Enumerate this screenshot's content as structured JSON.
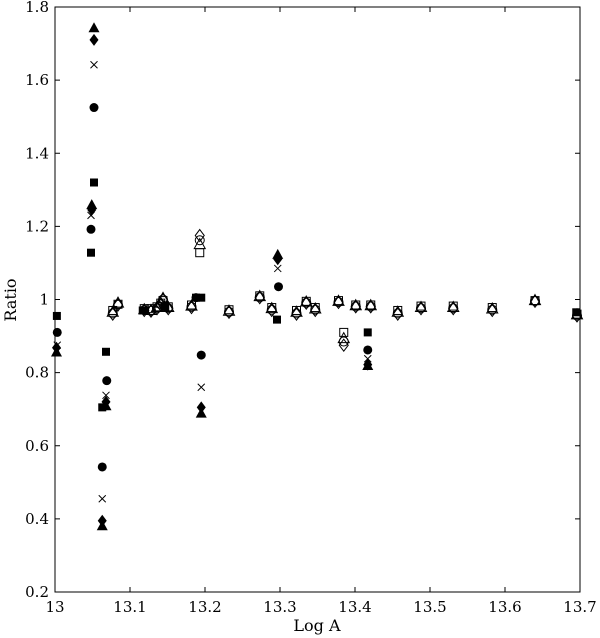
{
  "chart_data": {
    "type": "scatter",
    "title": "",
    "xlabel": "Log A",
    "ylabel": "Ratio",
    "xlim": [
      13,
      13.7
    ],
    "ylim": [
      0.2,
      1.8
    ],
    "x_ticks": [
      "13",
      "13.1",
      "13.2",
      "13.3",
      "13.4",
      "13.5",
      "13.6",
      "13.7"
    ],
    "y_ticks": [
      "0.2",
      "0.4",
      "0.6",
      "0.8",
      "1",
      "1.2",
      "1.4",
      "1.6",
      "1.8"
    ],
    "grid": false,
    "legend": "none",
    "series": [
      {
        "marker": "filled-square",
        "points": [
          [
            13.0025,
            0.955
          ],
          [
            13.048,
            1.128
          ],
          [
            13.052,
            1.32
          ],
          [
            13.063,
            0.705
          ],
          [
            13.068,
            0.857
          ],
          [
            13.117,
            0.97
          ],
          [
            13.147,
            0.98
          ],
          [
            13.188,
            1.005
          ],
          [
            13.195,
            1.005
          ],
          [
            13.296,
            0.945
          ],
          [
            13.417,
            0.91
          ],
          [
            13.695,
            0.965
          ]
        ]
      },
      {
        "marker": "filled-circle",
        "points": [
          [
            13.003,
            0.91
          ],
          [
            13.048,
            1.192
          ],
          [
            13.052,
            1.525
          ],
          [
            13.063,
            0.542
          ],
          [
            13.069,
            0.778
          ],
          [
            13.188,
            1.005
          ],
          [
            13.195,
            0.848
          ],
          [
            13.298,
            1.035
          ],
          [
            13.417,
            0.862
          ]
        ]
      },
      {
        "marker": "filled-diamond",
        "points": [
          [
            13.002,
            0.868
          ],
          [
            13.049,
            1.245
          ],
          [
            13.052,
            1.71
          ],
          [
            13.063,
            0.395
          ],
          [
            13.068,
            0.72
          ],
          [
            13.195,
            0.705
          ],
          [
            13.297,
            1.11
          ],
          [
            13.417,
            0.822
          ]
        ]
      },
      {
        "marker": "filled-triangle",
        "points": [
          [
            13.002,
            0.855
          ],
          [
            13.049,
            1.258
          ],
          [
            13.052,
            1.742
          ],
          [
            13.063,
            0.38
          ],
          [
            13.068,
            0.708
          ],
          [
            13.195,
            0.688
          ],
          [
            13.297,
            1.122
          ],
          [
            13.417,
            0.818
          ]
        ]
      },
      {
        "marker": "cross",
        "points": [
          [
            13.003,
            0.875
          ],
          [
            13.048,
            1.23
          ],
          [
            13.052,
            1.642
          ],
          [
            13.063,
            0.455
          ],
          [
            13.068,
            0.738
          ],
          [
            13.195,
            0.76
          ],
          [
            13.297,
            1.085
          ],
          [
            13.417,
            0.838
          ]
        ]
      },
      {
        "marker": "open-square",
        "points": [
          [
            13.077,
            0.97
          ],
          [
            13.084,
            0.987
          ],
          [
            13.119,
            0.975
          ],
          [
            13.128,
            0.975
          ],
          [
            13.136,
            0.98
          ],
          [
            13.141,
            0.99
          ],
          [
            13.144,
            0.997
          ],
          [
            13.151,
            0.98
          ],
          [
            13.182,
            0.985
          ],
          [
            13.193,
            1.128
          ],
          [
            13.232,
            0.972
          ],
          [
            13.273,
            1.01
          ],
          [
            13.289,
            0.978
          ],
          [
            13.322,
            0.97
          ],
          [
            13.335,
            0.995
          ],
          [
            13.347,
            0.978
          ],
          [
            13.378,
            0.997
          ],
          [
            13.385,
            0.91
          ],
          [
            13.401,
            0.985
          ],
          [
            13.421,
            0.985
          ],
          [
            13.457,
            0.97
          ],
          [
            13.488,
            0.982
          ],
          [
            13.531,
            0.982
          ],
          [
            13.583,
            0.978
          ],
          [
            13.64,
            0.997
          ],
          [
            13.696,
            0.96
          ]
        ]
      },
      {
        "marker": "open-diamond",
        "points": [
          [
            13.077,
            0.96
          ],
          [
            13.084,
            0.985
          ],
          [
            13.119,
            0.97
          ],
          [
            13.128,
            0.968
          ],
          [
            13.136,
            0.975
          ],
          [
            13.141,
            0.985
          ],
          [
            13.144,
            1.0
          ],
          [
            13.151,
            0.975
          ],
          [
            13.182,
            0.978
          ],
          [
            13.193,
            1.175
          ],
          [
            13.232,
            0.965
          ],
          [
            13.273,
            1.005
          ],
          [
            13.289,
            0.97
          ],
          [
            13.322,
            0.96
          ],
          [
            13.335,
            0.99
          ],
          [
            13.347,
            0.97
          ],
          [
            13.378,
            0.992
          ],
          [
            13.385,
            0.875
          ],
          [
            13.401,
            0.98
          ],
          [
            13.421,
            0.98
          ],
          [
            13.457,
            0.96
          ],
          [
            13.488,
            0.975
          ],
          [
            13.531,
            0.975
          ],
          [
            13.583,
            0.97
          ],
          [
            13.64,
            0.995
          ],
          [
            13.696,
            0.955
          ]
        ]
      },
      {
        "marker": "open-triangle",
        "points": [
          [
            13.077,
            0.965
          ],
          [
            13.084,
            0.99
          ],
          [
            13.119,
            0.972
          ],
          [
            13.128,
            0.97
          ],
          [
            13.136,
            0.978
          ],
          [
            13.141,
            0.99
          ],
          [
            13.144,
            1.003
          ],
          [
            13.151,
            0.978
          ],
          [
            13.182,
            0.982
          ],
          [
            13.193,
            1.15
          ],
          [
            13.232,
            0.968
          ],
          [
            13.273,
            1.008
          ],
          [
            13.289,
            0.975
          ],
          [
            13.322,
            0.965
          ],
          [
            13.335,
            0.993
          ],
          [
            13.347,
            0.974
          ],
          [
            13.378,
            0.995
          ],
          [
            13.385,
            0.893
          ],
          [
            13.401,
            0.983
          ],
          [
            13.421,
            0.983
          ],
          [
            13.457,
            0.965
          ],
          [
            13.488,
            0.978
          ],
          [
            13.531,
            0.978
          ],
          [
            13.583,
            0.974
          ],
          [
            13.64,
            0.997
          ],
          [
            13.696,
            0.958
          ]
        ]
      },
      {
        "marker": "open-circle",
        "points": [
          [
            13.077,
            0.962
          ],
          [
            13.084,
            0.986
          ],
          [
            13.119,
            0.971
          ],
          [
            13.128,
            0.969
          ],
          [
            13.136,
            0.976
          ],
          [
            13.141,
            0.987
          ],
          [
            13.144,
            1.0
          ],
          [
            13.151,
            0.976
          ],
          [
            13.182,
            0.98
          ],
          [
            13.193,
            1.162
          ],
          [
            13.232,
            0.966
          ],
          [
            13.273,
            1.006
          ],
          [
            13.289,
            0.972
          ],
          [
            13.322,
            0.962
          ],
          [
            13.335,
            0.991
          ],
          [
            13.347,
            0.972
          ],
          [
            13.378,
            0.993
          ],
          [
            13.385,
            0.885
          ],
          [
            13.401,
            0.981
          ],
          [
            13.421,
            0.981
          ],
          [
            13.457,
            0.962
          ],
          [
            13.488,
            0.976
          ],
          [
            13.531,
            0.976
          ],
          [
            13.583,
            0.972
          ],
          [
            13.64,
            0.996
          ],
          [
            13.696,
            0.956
          ]
        ]
      }
    ]
  }
}
